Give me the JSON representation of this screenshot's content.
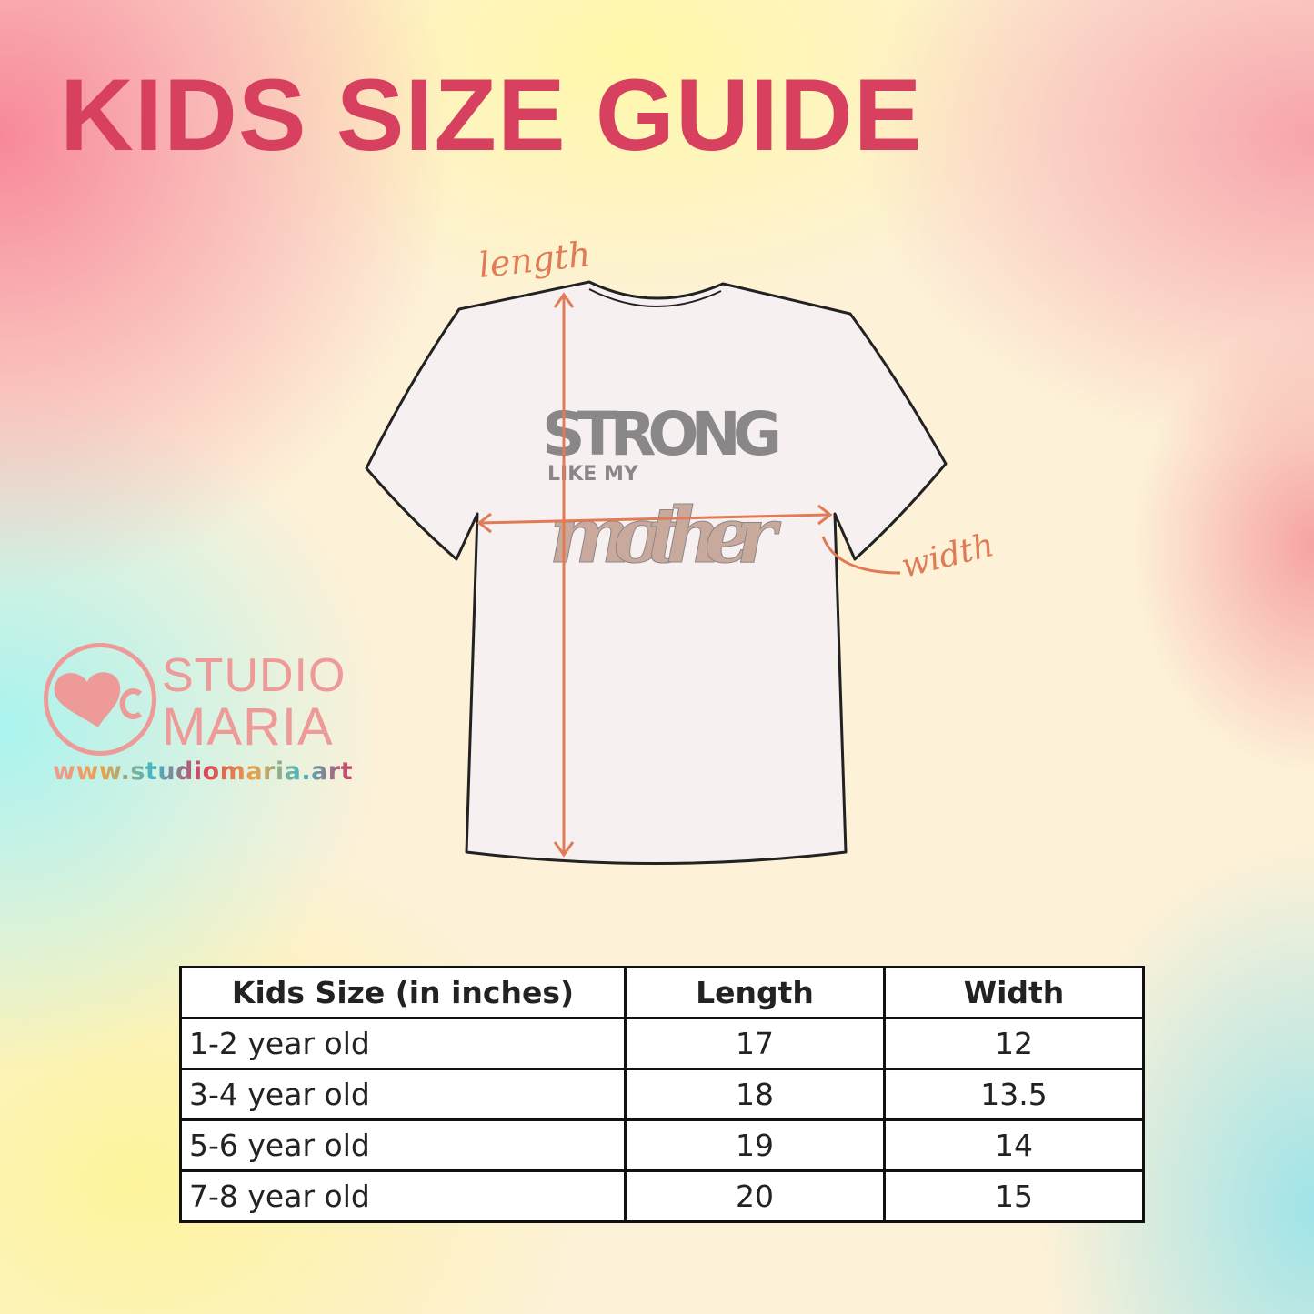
{
  "title": "KIDS SIZE GUIDE",
  "diagram": {
    "length_label": "length",
    "width_label": "width",
    "shirt_print": {
      "line1": "STRONG",
      "line2": "LIKE MY",
      "line3": "mother"
    },
    "colors": {
      "arrow": "#e07b55",
      "shirt": "#f7f0f1",
      "outline": "#222222"
    }
  },
  "logo": {
    "line1": "STUDIO",
    "line2": "MARIA",
    "url": "www.studiomaria.art",
    "color": "#ee9a99"
  },
  "table": {
    "headers": [
      "Kids Size (in inches)",
      "Length",
      "Width"
    ],
    "rows": [
      [
        "1-2 year old",
        "17",
        "12"
      ],
      [
        "3-4 year old",
        "18",
        "13.5"
      ],
      [
        "5-6 year old",
        "19",
        "14"
      ],
      [
        "7-8 year old",
        "20",
        "15"
      ]
    ]
  }
}
